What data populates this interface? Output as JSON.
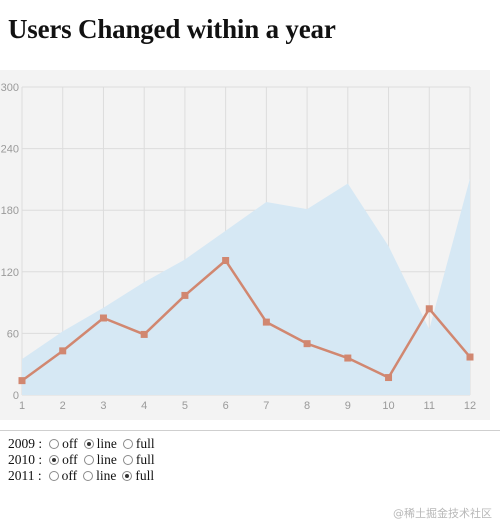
{
  "page": {
    "title": "Users Changed within a year"
  },
  "chart_data": {
    "type": "line",
    "x": [
      1,
      2,
      3,
      4,
      5,
      6,
      7,
      8,
      9,
      10,
      11,
      12
    ],
    "xlim": [
      1,
      12
    ],
    "ylim": [
      0,
      300
    ],
    "y_ticks": [
      0,
      60,
      120,
      180,
      240,
      300
    ],
    "x_ticks": [
      1,
      2,
      3,
      4,
      5,
      6,
      7,
      8,
      9,
      10,
      11,
      12
    ],
    "grid": true,
    "series": [
      {
        "mode": "line",
        "color": "#d18770",
        "values": [
          14,
          43,
          75,
          59,
          97,
          131,
          71,
          50,
          36,
          17,
          84,
          37
        ]
      },
      {
        "mode": "full",
        "color": "#d6e8f4",
        "values": [
          35,
          62,
          85,
          110,
          132,
          160,
          188,
          181,
          206,
          145,
          64,
          211
        ]
      }
    ]
  },
  "controls": {
    "options": [
      "off",
      "line",
      "full"
    ],
    "rows": [
      {
        "year": "2009",
        "separator": ":",
        "selected": "line"
      },
      {
        "year": "2010",
        "separator": ":",
        "selected": "off"
      },
      {
        "year": "2011",
        "separator": ":",
        "selected": "full"
      }
    ]
  },
  "footer": {
    "watermark": "@稀土掘金技术社区"
  },
  "colors": {
    "plot_background": "#f3f3f3",
    "grid": "#dcdcdc",
    "tick_label": "#9a9a9a",
    "line": "#d18770",
    "area_fill": "#d6e8f4"
  }
}
